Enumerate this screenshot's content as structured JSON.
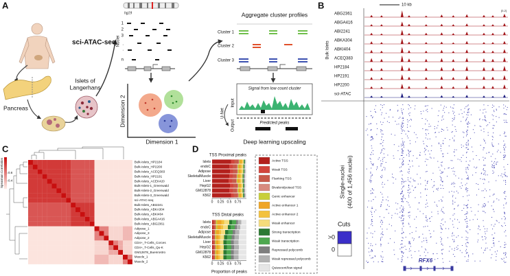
{
  "panel_a": {
    "label": "A",
    "genome": "hg19",
    "method": "sci-ATAC-seq",
    "islets": [
      "Islets of",
      "Langerhans"
    ],
    "pancreas": "Pancreas",
    "nuclei_axis": "Nuclei",
    "nuclei_rows": [
      "1",
      "2",
      "3",
      ".",
      ".",
      "n"
    ],
    "dim2": "Dimension 2",
    "dim1": "Dimension 1",
    "aggregate_title": "Aggregate cluster profiles",
    "clusters": [
      "Cluster 1",
      "Cluster 2",
      "Cluster 3"
    ],
    "low_count": "Signal from low count cluster",
    "input": "Input",
    "unet": "U-Net",
    "output": "Output",
    "predicted": "Predicted peaks",
    "upscaling": "Deep learning upscaling"
  },
  "panel_b": {
    "label": "B",
    "scale_bar": "10 kb",
    "range_label": "[0-2]",
    "bulk_label": "Bulk Islets",
    "xlim": [
      0,
      37
    ],
    "ylim": [
      0,
      2
    ],
    "peak_positions": [
      1.8,
      4.4,
      9.7,
      11.5,
      15.9,
      19.9,
      22.9,
      26.4,
      30.8,
      33.1,
      36.1
    ],
    "tracks": [
      {
        "name": "ABG2361",
        "color": "#a3161a",
        "values": [
          0.6,
          0.5,
          1.8,
          0.5,
          0.4,
          0.7,
          0.5,
          0.8,
          0.6,
          0.5,
          0.9
        ]
      },
      {
        "name": "ABGA416",
        "color": "#a3161a",
        "values": [
          0.5,
          0.5,
          1.2,
          0.6,
          0.5,
          0.6,
          0.5,
          0.7,
          0.5,
          0.5,
          0.8
        ]
      },
      {
        "name": "ABI2241",
        "color": "#a3161a",
        "values": [
          0.6,
          0.4,
          1.4,
          0.5,
          0.6,
          0.7,
          0.5,
          0.9,
          0.6,
          0.6,
          0.9
        ]
      },
      {
        "name": "ABKA304",
        "color": "#a3161a",
        "values": [
          0.7,
          0.5,
          1.5,
          0.6,
          0.5,
          0.6,
          0.4,
          0.8,
          0.5,
          0.5,
          0.8
        ]
      },
      {
        "name": "ABKI404",
        "color": "#a3161a",
        "values": [
          0.8,
          0.6,
          1.6,
          0.7,
          0.6,
          0.8,
          0.5,
          0.9,
          0.7,
          0.6,
          1.0
        ]
      },
      {
        "name": "ACEQ383",
        "color": "#a3161a",
        "values": [
          1.0,
          0.8,
          1.7,
          0.9,
          0.8,
          1.0,
          0.7,
          1.1,
          0.9,
          0.8,
          1.2
        ]
      },
      {
        "name": "HP2184",
        "color": "#a3161a",
        "values": [
          0.8,
          0.7,
          1.5,
          0.9,
          0.8,
          1.0,
          0.8,
          1.2,
          1.0,
          0.9,
          1.3
        ]
      },
      {
        "name": "HP2191",
        "color": "#a3161a",
        "values": [
          0.7,
          0.6,
          1.4,
          0.8,
          0.7,
          0.9,
          0.7,
          1.1,
          0.9,
          0.8,
          1.2
        ]
      },
      {
        "name": "HP2200",
        "color": "#a3161a",
        "values": [
          0.6,
          0.5,
          1.3,
          0.7,
          0.6,
          0.8,
          0.6,
          1.0,
          0.8,
          0.7,
          1.1
        ]
      },
      {
        "name": "sci-ATAC",
        "color": "#1e1e80",
        "values": [
          0.5,
          0.4,
          1.2,
          0.5,
          0.4,
          0.6,
          0.4,
          0.7,
          0.5,
          0.4,
          0.8
        ]
      }
    ],
    "single_nuclei": [
      "Single-nuclei",
      "(400 of 1,456 nuclei)"
    ],
    "cuts_title": "Cuts",
    "cuts_legend": [
      {
        "label": ">0",
        "color": "#3b2fc9"
      },
      {
        "label": "0",
        "color": "#ffffff"
      }
    ],
    "dot_color": "#3b3bb0",
    "gene": "RFX6"
  },
  "panel_c": {
    "label": "C",
    "type": "heatmap",
    "colorbar_title": "Spearman Correlation",
    "clim": [
      0.2,
      1
    ],
    "colorbar_ticks": [
      0.6,
      0.4
    ],
    "labels": [
      "Bulk-Islets_HP2184",
      "Bulk-Islets_HP2200",
      "Bulk-Islets_ACEQ383",
      "Bulk-Islets_HP2191",
      "Bulk-Islets_ACEK420",
      "Bulk-Islets-1_Greenwald",
      "Bulk-Islets-2_Greenwald",
      "Bulk-Islets-3_Greenwald",
      "sci-ATAC-seq",
      "Bulk-Islets_ABI2241",
      "Bulk-Islets_ABKA304",
      "Bulk-Islets_ABKI404",
      "Bulk-Islets_ABGA416",
      "Bulk-Islets_ABG2361",
      "Adipose_1",
      "Adipose_3",
      "Adipose_2",
      "CD4+_T-Cells_Corces",
      "CD4+_T-Cells_Qu-K",
      "GM12878_Buenrostro",
      "Muscle_1",
      "Muscle_2"
    ],
    "matrix": [
      [
        1,
        0.85,
        0.85,
        0.85,
        0.85,
        0.85,
        0.85,
        0.85,
        0.85,
        0.75,
        0.75,
        0.75,
        0.75,
        0.75,
        0.25,
        0.25,
        0.25,
        0.25,
        0.25,
        0.25,
        0.25,
        0.25
      ],
      [
        0.85,
        1,
        0.85,
        0.85,
        0.85,
        0.85,
        0.85,
        0.85,
        0.85,
        0.75,
        0.75,
        0.75,
        0.75,
        0.75,
        0.25,
        0.25,
        0.25,
        0.25,
        0.25,
        0.25,
        0.25,
        0.25
      ],
      [
        0.85,
        0.85,
        1,
        0.85,
        0.85,
        0.85,
        0.85,
        0.85,
        0.85,
        0.75,
        0.75,
        0.75,
        0.75,
        0.75,
        0.25,
        0.25,
        0.25,
        0.25,
        0.25,
        0.25,
        0.25,
        0.25
      ],
      [
        0.85,
        0.85,
        0.85,
        1,
        0.85,
        0.85,
        0.85,
        0.85,
        0.85,
        0.75,
        0.75,
        0.75,
        0.75,
        0.75,
        0.25,
        0.25,
        0.25,
        0.25,
        0.25,
        0.25,
        0.25,
        0.25
      ],
      [
        0.85,
        0.85,
        0.85,
        0.85,
        1,
        0.85,
        0.85,
        0.85,
        0.85,
        0.75,
        0.75,
        0.75,
        0.75,
        0.75,
        0.25,
        0.25,
        0.25,
        0.25,
        0.25,
        0.25,
        0.25,
        0.25
      ],
      [
        0.85,
        0.85,
        0.85,
        0.85,
        0.85,
        1,
        0.85,
        0.85,
        0.85,
        0.75,
        0.75,
        0.75,
        0.75,
        0.75,
        0.25,
        0.25,
        0.25,
        0.25,
        0.25,
        0.25,
        0.25,
        0.25
      ],
      [
        0.85,
        0.85,
        0.85,
        0.85,
        0.85,
        0.85,
        1,
        0.85,
        0.85,
        0.75,
        0.75,
        0.75,
        0.75,
        0.75,
        0.25,
        0.25,
        0.25,
        0.25,
        0.25,
        0.25,
        0.25,
        0.25
      ],
      [
        0.85,
        0.85,
        0.85,
        0.85,
        0.85,
        0.85,
        0.85,
        1,
        0.85,
        0.75,
        0.75,
        0.75,
        0.75,
        0.75,
        0.25,
        0.25,
        0.25,
        0.25,
        0.25,
        0.25,
        0.25,
        0.25
      ],
      [
        0.85,
        0.85,
        0.85,
        0.85,
        0.85,
        0.85,
        0.85,
        0.85,
        1,
        0.75,
        0.75,
        0.75,
        0.75,
        0.75,
        0.25,
        0.25,
        0.25,
        0.25,
        0.25,
        0.25,
        0.25,
        0.25
      ],
      [
        0.75,
        0.75,
        0.75,
        0.75,
        0.75,
        0.75,
        0.75,
        0.75,
        0.75,
        1,
        0.85,
        0.85,
        0.85,
        0.85,
        0.25,
        0.25,
        0.25,
        0.25,
        0.25,
        0.25,
        0.25,
        0.25
      ],
      [
        0.75,
        0.75,
        0.75,
        0.75,
        0.75,
        0.75,
        0.75,
        0.75,
        0.75,
        0.85,
        1,
        0.85,
        0.85,
        0.85,
        0.25,
        0.25,
        0.25,
        0.25,
        0.25,
        0.25,
        0.25,
        0.25
      ],
      [
        0.75,
        0.75,
        0.75,
        0.75,
        0.75,
        0.75,
        0.75,
        0.75,
        0.75,
        0.85,
        0.85,
        1,
        0.85,
        0.85,
        0.25,
        0.25,
        0.25,
        0.25,
        0.25,
        0.25,
        0.25,
        0.25
      ],
      [
        0.75,
        0.75,
        0.75,
        0.75,
        0.75,
        0.75,
        0.75,
        0.75,
        0.75,
        0.85,
        0.85,
        0.85,
        1,
        0.85,
        0.25,
        0.25,
        0.25,
        0.25,
        0.25,
        0.25,
        0.25,
        0.25
      ],
      [
        0.75,
        0.75,
        0.75,
        0.75,
        0.75,
        0.75,
        0.75,
        0.75,
        0.75,
        0.85,
        0.85,
        0.85,
        0.85,
        1,
        0.25,
        0.25,
        0.25,
        0.25,
        0.25,
        0.25,
        0.25,
        0.25
      ],
      [
        0.25,
        0.25,
        0.25,
        0.25,
        0.25,
        0.25,
        0.25,
        0.25,
        0.25,
        0.25,
        0.25,
        0.25,
        0.25,
        0.25,
        1,
        0.6,
        0.6,
        0.3,
        0.3,
        0.3,
        0.4,
        0.4
      ],
      [
        0.25,
        0.25,
        0.25,
        0.25,
        0.25,
        0.25,
        0.25,
        0.25,
        0.25,
        0.25,
        0.25,
        0.25,
        0.25,
        0.25,
        0.6,
        1,
        0.6,
        0.3,
        0.3,
        0.3,
        0.4,
        0.4
      ],
      [
        0.25,
        0.25,
        0.25,
        0.25,
        0.25,
        0.25,
        0.25,
        0.25,
        0.25,
        0.25,
        0.25,
        0.25,
        0.25,
        0.25,
        0.6,
        0.6,
        1,
        0.3,
        0.3,
        0.3,
        0.4,
        0.4
      ],
      [
        0.25,
        0.25,
        0.25,
        0.25,
        0.25,
        0.25,
        0.25,
        0.25,
        0.25,
        0.25,
        0.25,
        0.25,
        0.25,
        0.25,
        0.3,
        0.3,
        0.3,
        1,
        0.6,
        0.45,
        0.3,
        0.3
      ],
      [
        0.25,
        0.25,
        0.25,
        0.25,
        0.25,
        0.25,
        0.25,
        0.25,
        0.25,
        0.25,
        0.25,
        0.25,
        0.25,
        0.25,
        0.3,
        0.3,
        0.3,
        0.6,
        1,
        0.45,
        0.3,
        0.3
      ],
      [
        0.25,
        0.25,
        0.25,
        0.25,
        0.25,
        0.25,
        0.25,
        0.25,
        0.25,
        0.25,
        0.25,
        0.25,
        0.25,
        0.25,
        0.3,
        0.3,
        0.3,
        0.45,
        0.45,
        1,
        0.3,
        0.3
      ],
      [
        0.25,
        0.25,
        0.25,
        0.25,
        0.25,
        0.25,
        0.25,
        0.25,
        0.25,
        0.25,
        0.25,
        0.25,
        0.25,
        0.25,
        0.4,
        0.4,
        0.4,
        0.3,
        0.3,
        0.3,
        1,
        0.6
      ],
      [
        0.25,
        0.25,
        0.25,
        0.25,
        0.25,
        0.25,
        0.25,
        0.25,
        0.25,
        0.25,
        0.25,
        0.25,
        0.25,
        0.25,
        0.4,
        0.4,
        0.4,
        0.3,
        0.3,
        0.3,
        0.6,
        1
      ]
    ]
  },
  "panel_d": {
    "label": "D",
    "type": "bar",
    "orientation": "horizontal",
    "stacked": true,
    "categories": [
      "Islets",
      "endoC",
      "Adipose",
      "SkeletalMuscle",
      "Liver",
      "HepG2",
      "GM12878",
      "K562"
    ],
    "xlim": [
      0,
      1
    ],
    "xticks": [
      0,
      0.25,
      0.5,
      0.75
    ],
    "xlabel": "Proportion of peaks",
    "states": [
      {
        "name": "Active TSS",
        "color": "#b3201c"
      },
      {
        "name": "Weak TSS",
        "color": "#d2453c"
      },
      {
        "name": "Flanking TSS",
        "color": "#c85a4a"
      },
      {
        "name": "Bivalent/poised TSS",
        "color": "#d88a7e"
      },
      {
        "name": "Genic enhancer",
        "color": "#c8cf3a"
      },
      {
        "name": "Active enhancer 1",
        "color": "#efa525"
      },
      {
        "name": "Active enhancer 2",
        "color": "#f3c23e"
      },
      {
        "name": "Weak enhancer",
        "color": "#f4dc7c"
      },
      {
        "name": "Strong transcription",
        "color": "#2b7a33"
      },
      {
        "name": "Weak transcription",
        "color": "#4ea84f"
      },
      {
        "name": "Repressed polycomb",
        "color": "#7f7f7f"
      },
      {
        "name": "Weak repressed polycomb",
        "color": "#b2b2b2"
      },
      {
        "name": "Quiescent/low signal",
        "color": "#e6e6e6"
      }
    ],
    "charts": [
      {
        "title": "TSS Proximal peaks",
        "values": [
          [
            0.55,
            0.5,
            0.52,
            0.5,
            0.48,
            0.52,
            0.5,
            0.55
          ],
          [
            0.1,
            0.1,
            0.09,
            0.1,
            0.1,
            0.1,
            0.1,
            0.08
          ],
          [
            0.12,
            0.12,
            0.12,
            0.11,
            0.12,
            0.12,
            0.12,
            0.12
          ],
          [
            0.02,
            0.03,
            0.02,
            0.02,
            0.02,
            0.02,
            0.03,
            0.02
          ],
          [
            0.03,
            0.03,
            0.03,
            0.03,
            0.03,
            0.03,
            0.03,
            0.03
          ],
          [
            0.04,
            0.05,
            0.05,
            0.05,
            0.05,
            0.04,
            0.04,
            0.04
          ],
          [
            0.03,
            0.04,
            0.04,
            0.04,
            0.04,
            0.03,
            0.03,
            0.03
          ],
          [
            0.03,
            0.04,
            0.04,
            0.04,
            0.05,
            0.04,
            0.04,
            0.03
          ],
          [
            0.01,
            0.01,
            0.01,
            0.01,
            0.01,
            0.01,
            0.01,
            0.01
          ],
          [
            0.02,
            0.02,
            0.02,
            0.02,
            0.02,
            0.02,
            0.02,
            0.02
          ],
          [
            0.01,
            0.01,
            0.01,
            0.02,
            0.02,
            0.01,
            0.02,
            0.02
          ],
          [
            0.01,
            0.01,
            0.02,
            0.02,
            0.02,
            0.02,
            0.02,
            0.02
          ],
          [
            0.03,
            0.04,
            0.03,
            0.04,
            0.04,
            0.04,
            0.04,
            0.03
          ]
        ]
      },
      {
        "title": "TSS Distal peaks",
        "values": [
          [
            0.03,
            0.03,
            0.02,
            0.02,
            0.02,
            0.03,
            0.02,
            0.02
          ],
          [
            0.02,
            0.02,
            0.02,
            0.02,
            0.02,
            0.02,
            0.02,
            0.02
          ],
          [
            0.05,
            0.05,
            0.04,
            0.04,
            0.04,
            0.04,
            0.04,
            0.04
          ],
          [
            0.01,
            0.01,
            0.01,
            0.01,
            0.01,
            0.01,
            0.01,
            0.01
          ],
          [
            0.04,
            0.04,
            0.03,
            0.03,
            0.03,
            0.03,
            0.03,
            0.03
          ],
          [
            0.12,
            0.1,
            0.08,
            0.07,
            0.06,
            0.06,
            0.06,
            0.06
          ],
          [
            0.08,
            0.07,
            0.06,
            0.05,
            0.05,
            0.05,
            0.05,
            0.05
          ],
          [
            0.15,
            0.14,
            0.12,
            0.11,
            0.1,
            0.1,
            0.1,
            0.1
          ],
          [
            0.08,
            0.08,
            0.09,
            0.09,
            0.09,
            0.09,
            0.09,
            0.09
          ],
          [
            0.12,
            0.12,
            0.13,
            0.13,
            0.13,
            0.13,
            0.13,
            0.13
          ],
          [
            0.05,
            0.06,
            0.07,
            0.08,
            0.08,
            0.08,
            0.08,
            0.08
          ],
          [
            0.1,
            0.1,
            0.12,
            0.13,
            0.14,
            0.14,
            0.14,
            0.14
          ],
          [
            0.15,
            0.18,
            0.21,
            0.22,
            0.23,
            0.22,
            0.23,
            0.23
          ]
        ]
      }
    ]
  }
}
